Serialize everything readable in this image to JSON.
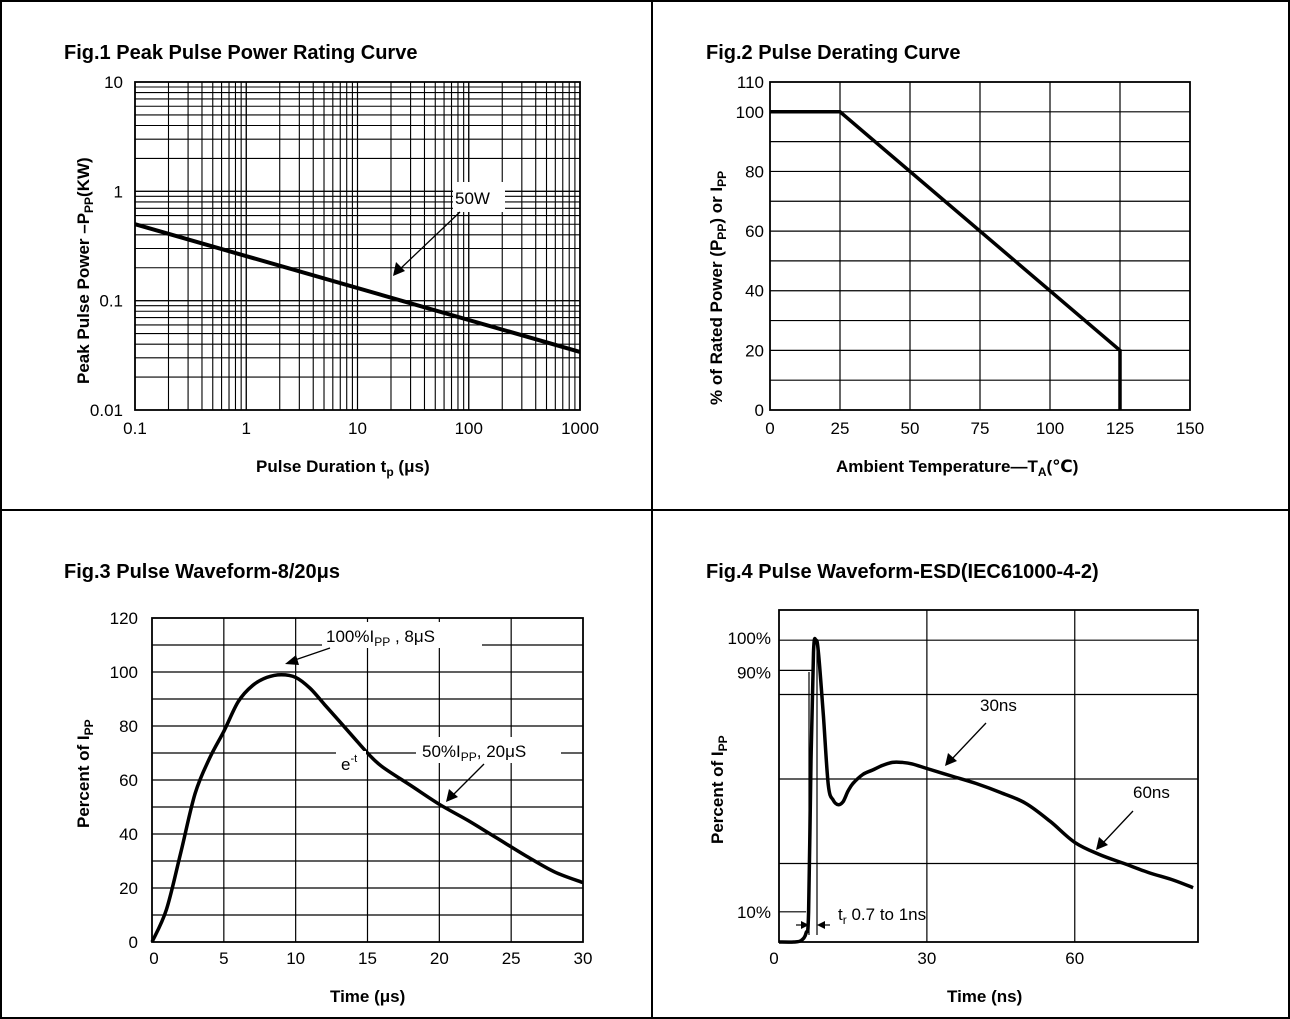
{
  "chart_data": [
    {
      "id": "fig1",
      "type": "line",
      "title": "Fig.1 Peak Pulse Power Rating Curve",
      "xlabel": "Pulse Duration t",
      "xlabel_sub": "p",
      "xlabel_tail": " (μs)",
      "ylabel": "Peak Pulse Power –P",
      "ylabel_sub": "PP",
      "ylabel_tail": "(KW)",
      "xscale": "log",
      "yscale": "log",
      "xlim": [
        0.1,
        1000
      ],
      "ylim": [
        0.01,
        10
      ],
      "xticks": [
        0.1,
        1,
        10,
        100,
        1000
      ],
      "xtick_labels": [
        "0.1",
        "1",
        "10",
        "100",
        "1000"
      ],
      "yticks": [
        0.01,
        0.1,
        1,
        10
      ],
      "ytick_labels": [
        "0.01",
        "0.1",
        "1",
        "10"
      ],
      "grid": true,
      "series": [
        {
          "x": [
            0.1,
            1000
          ],
          "y": [
            0.5,
            0.034
          ]
        }
      ],
      "annotations": [
        {
          "text": "50W",
          "x": 28,
          "y": 0.15
        }
      ]
    },
    {
      "id": "fig2",
      "type": "line",
      "title": "Fig.2 Pulse Derating Curve",
      "xlabel": "Ambient Temperature—T",
      "xlabel_sub": "A",
      "xlabel_tail": "(℃)",
      "ylabel": "% of Rated Power (P",
      "ylabel_sub": "PP",
      "ylabel_mid": ") or I",
      "ylabel_sub2": "PP",
      "xlim": [
        0,
        150
      ],
      "ylim": [
        0,
        110
      ],
      "xticks": [
        0,
        25,
        50,
        75,
        100,
        125,
        150
      ],
      "xtick_labels": [
        "0",
        "25",
        "50",
        "75",
        "100",
        "125",
        "150"
      ],
      "yticks": [
        0,
        20,
        40,
        60,
        80,
        100,
        110
      ],
      "ytick_labels": [
        "0",
        "20",
        "40",
        "60",
        "80",
        "100",
        "110"
      ],
      "grid": true,
      "series": [
        {
          "x": [
            0,
            25,
            125,
            125
          ],
          "y": [
            100,
            100,
            20,
            0
          ]
        }
      ]
    },
    {
      "id": "fig3",
      "type": "line",
      "title": "Fig.3 Pulse Waveform-8/20μs",
      "xlabel": "Time (μs)",
      "ylabel": "Percent of I",
      "ylabel_sub": "PP",
      "xlim": [
        0,
        30
      ],
      "ylim": [
        0,
        120
      ],
      "xticks": [
        0,
        5,
        10,
        15,
        20,
        25,
        30
      ],
      "xtick_labels": [
        "0",
        "5",
        "10",
        "15",
        "20",
        "25",
        "30"
      ],
      "yticks": [
        0,
        20,
        40,
        60,
        80,
        100,
        120
      ],
      "ytick_labels": [
        "0",
        "20",
        "40",
        "60",
        "80",
        "100",
        "120"
      ],
      "grid": true,
      "series": [
        {
          "x": [
            0,
            1,
            2,
            3,
            4,
            5,
            6,
            7,
            8,
            9,
            10,
            11,
            12,
            13,
            14,
            15,
            16,
            18,
            20,
            22,
            24,
            26,
            28,
            30
          ],
          "y": [
            0,
            12,
            33,
            55,
            68,
            78,
            89,
            95,
            98,
            99,
            98,
            94,
            88,
            82,
            76,
            70,
            65,
            58,
            51,
            45,
            38.5,
            32,
            26,
            22
          ]
        }
      ],
      "annotations": [
        {
          "text": "100%I",
          "sub": "PP",
          "tail": " , 8μS"
        },
        {
          "text": "50%I",
          "sub": "PP",
          "tail": ", 20μS"
        },
        {
          "text": "e",
          "sup": "-t"
        }
      ]
    },
    {
      "id": "fig4",
      "type": "line",
      "title": "Fig.4 Pulse Waveform-ESD(IEC61000-4-2)",
      "xlabel": "Time (ns)",
      "ylabel": "Percent of I",
      "ylabel_sub": "PP",
      "xlim": [
        0,
        85
      ],
      "ylim": [
        0,
        110
      ],
      "xticks": [
        0,
        30,
        60
      ],
      "xtick_labels": [
        "0",
        "30",
        "60"
      ],
      "yticks": [
        10,
        90,
        100
      ],
      "ytick_labels": [
        "10%",
        "90%",
        "100%"
      ],
      "grid": true,
      "series": [
        {
          "x": [
            0,
            3,
            4.5,
            5.5,
            6,
            6.5,
            7,
            7.5,
            8,
            9,
            10,
            11,
            12,
            13,
            14,
            15,
            17,
            19,
            21,
            23,
            25,
            27,
            30,
            35,
            40,
            45,
            50,
            55,
            60,
            65,
            70,
            75,
            80,
            84
          ],
          "y": [
            0,
            0,
            0.5,
            3,
            10,
            60,
            96,
            100,
            96,
            75,
            52,
            47,
            45.5,
            46.5,
            50,
            52.5,
            55.5,
            57,
            58.5,
            59.5,
            59.5,
            59,
            57.5,
            55,
            52.5,
            49.5,
            46,
            40,
            33,
            29,
            26,
            23,
            20.5,
            18
          ]
        }
      ],
      "annotations": [
        {
          "text": "30ns"
        },
        {
          "text": "60ns"
        },
        {
          "text": "t",
          "sub": "r",
          "tail": " 0.7 to 1ns"
        }
      ]
    }
  ]
}
